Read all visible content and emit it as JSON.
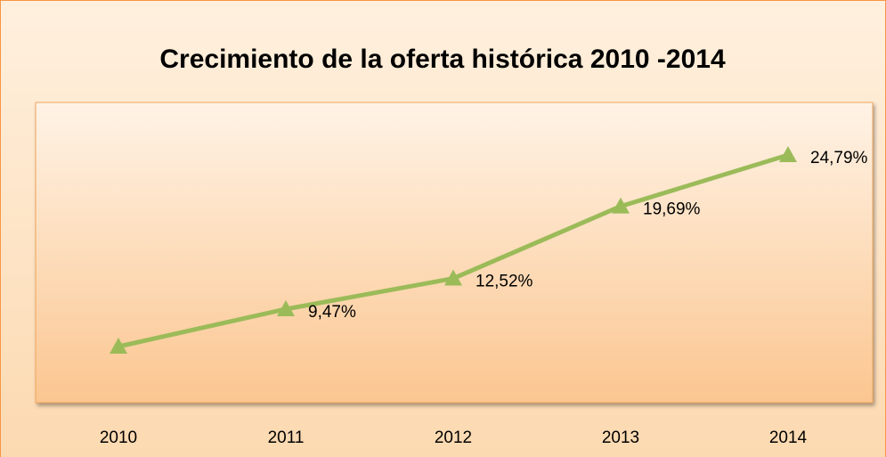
{
  "chart_data": {
    "type": "line",
    "title": "Crecimiento de la oferta histórica 2010 -2014",
    "categories": [
      "2010",
      "2011",
      "2012",
      "2013",
      "2014"
    ],
    "values": [
      5.75,
      9.47,
      12.52,
      19.69,
      24.79
    ],
    "value_labels": [
      null,
      "9,47%",
      "12,52%",
      "19,69%",
      "24,79%"
    ],
    "color": "#9bbb59"
  }
}
